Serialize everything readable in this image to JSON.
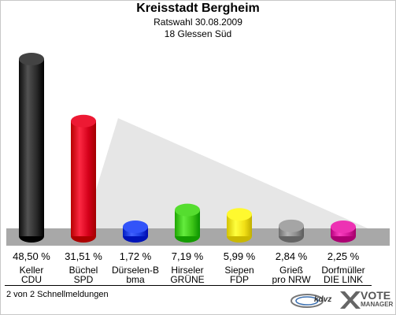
{
  "header": {
    "title": "Kreisstadt Bergheim",
    "subtitle1": "Ratswahl 30.08.2009",
    "subtitle2": "18 Glessen Süd"
  },
  "footer": {
    "status": "2 von 2 Schnellmeldungen",
    "logo_kdvz": "kdvz",
    "logo_vote": "VOTE",
    "logo_manager": "MANAGER"
  },
  "colors": {
    "floor": "#a8a8a8",
    "wall": "#e6e6e6"
  },
  "chart_data": {
    "type": "bar",
    "ylim": [
      0,
      50
    ],
    "categories": [
      "Keller CDU",
      "Büchel SPD",
      "Dürselen-B bma",
      "Hirseler GRÜNE",
      "Siepen FDP",
      "Grieß pro NRW",
      "Dorfmüller DIE LINK"
    ],
    "bars": [
      {
        "candidate": "Keller",
        "party": "CDU",
        "value": 48.5,
        "label": "48,50 %",
        "color": "#2a2a2a"
      },
      {
        "candidate": "Büchel",
        "party": "SPD",
        "value": 31.51,
        "label": "31,51 %",
        "color": "#d4001a"
      },
      {
        "candidate": "Dürselen-B",
        "party": "bma",
        "value": 1.72,
        "label": "1,72 %",
        "color": "#1a3be0"
      },
      {
        "candidate": "Hirseler",
        "party": "GRÜNE",
        "value": 7.19,
        "label": "7,19 %",
        "color": "#3cc416"
      },
      {
        "candidate": "Siepen",
        "party": "FDP",
        "value": 5.99,
        "label": "5,99 %",
        "color": "#f2e016"
      },
      {
        "candidate": "Grieß",
        "party": "pro NRW",
        "value": 2.84,
        "label": "2,84 %",
        "color": "#8c8c8c"
      },
      {
        "candidate": "Dorfmüller",
        "party": "DIE LINK",
        "value": 2.25,
        "label": "2,25 %",
        "color": "#d4199a"
      }
    ]
  }
}
